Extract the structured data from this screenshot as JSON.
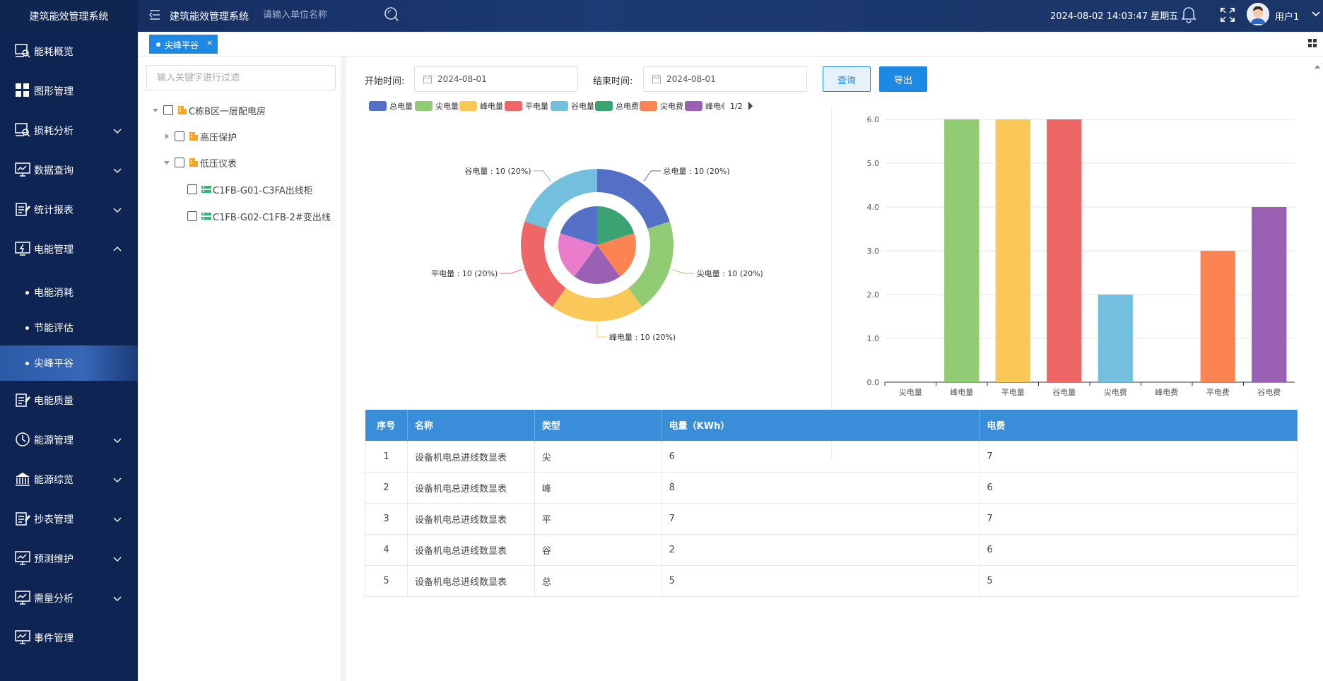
{
  "header": {
    "logo_title": "建筑能效管理系统",
    "system_title": "建筑能效管理系统",
    "search_placeholder": "请输入单位名称",
    "datetime": "2024-08-02 14:03:47 星期五",
    "user_name": "用户1"
  },
  "sidebar": {
    "items": [
      {
        "label": "能耗概览",
        "icon": "monitor-search-icon",
        "has_chevron": false
      },
      {
        "label": "图形管理",
        "icon": "grid-icon",
        "has_chevron": false
      },
      {
        "label": "损耗分析",
        "icon": "monitor-search-icon",
        "has_chevron": true
      },
      {
        "label": "数据查询",
        "icon": "chart-monitor-icon",
        "has_chevron": true
      },
      {
        "label": "统计报表",
        "icon": "report-edit-icon",
        "has_chevron": true
      },
      {
        "label": "电能管理",
        "icon": "power-monitor-icon",
        "has_chevron": true,
        "expanded": true
      }
    ],
    "subitems": [
      {
        "label": "电能消耗",
        "active": false
      },
      {
        "label": "节能评估",
        "active": false
      },
      {
        "label": "尖峰平谷",
        "active": true
      }
    ],
    "items_after": [
      {
        "label": "电能质量",
        "icon": "report-edit-icon",
        "has_chevron": false
      },
      {
        "label": "能源管理",
        "icon": "clock-icon",
        "has_chevron": true
      },
      {
        "label": "能源综览",
        "icon": "bank-icon",
        "has_chevron": true
      },
      {
        "label": "抄表管理",
        "icon": "report-edit-icon",
        "has_chevron": true
      },
      {
        "label": "预测维护",
        "icon": "chart-monitor-icon",
        "has_chevron": true
      },
      {
        "label": "需量分析",
        "icon": "chart-monitor-icon",
        "has_chevron": true
      },
      {
        "label": "事件管理",
        "icon": "chart-monitor-icon",
        "has_chevron": false
      }
    ]
  },
  "tabs": [
    {
      "label": "尖峰平谷",
      "close": "×"
    }
  ],
  "tree": {
    "filter_placeholder": "输入关键字进行过滤",
    "nodes": [
      {
        "label": "C栋B区一层配电房",
        "level": 0,
        "arrow": "down",
        "icon": "building-icon"
      },
      {
        "label": "高压保护",
        "level": 1,
        "arrow": "right",
        "icon": "building-icon"
      },
      {
        "label": "低压仪表",
        "level": 1,
        "arrow": "down",
        "icon": "building-icon"
      },
      {
        "label": "C1FB-G01-C3FA出线柜",
        "level": 2,
        "arrow": "none",
        "icon": "meter-icon"
      },
      {
        "label": "C1FB-G02-C1FB-2#变出线",
        "level": 2,
        "arrow": "none",
        "icon": "meter-icon"
      }
    ]
  },
  "filters": {
    "start_label": "开始时间:",
    "start_value": "2024-08-01",
    "end_label": "结束时间:",
    "end_value": "2024-08-01",
    "query_button": "查询",
    "export_button": "导出"
  },
  "legend": {
    "items": [
      {
        "name": "总电量",
        "color": "#5470c6"
      },
      {
        "name": "尖电量",
        "color": "#91cc75"
      },
      {
        "name": "峰电量",
        "color": "#fac858"
      },
      {
        "name": "平电量",
        "color": "#ee6666"
      },
      {
        "name": "谷电量",
        "color": "#73c0de"
      },
      {
        "name": "总电费",
        "color": "#3ba272"
      },
      {
        "name": "尖电费",
        "color": "#fc8452"
      },
      {
        "name": "峰电",
        "color": "#9a60b4"
      }
    ],
    "pager": "1/2"
  },
  "chart_data": [
    {
      "type": "pie",
      "rings": [
        {
          "ring": "outer",
          "slices": [
            {
              "name": "总电量",
              "value": 10,
              "percent": 20,
              "color": "#5470c6",
              "label": "总电量 : 10 (20%)"
            },
            {
              "name": "尖电量",
              "value": 10,
              "percent": 20,
              "color": "#91cc75",
              "label": "尖电量 : 10 (20%)"
            },
            {
              "name": "峰电量",
              "value": 10,
              "percent": 20,
              "color": "#fac858",
              "label": "峰电量 : 10 (20%)"
            },
            {
              "name": "平电量",
              "value": 10,
              "percent": 20,
              "color": "#ee6666",
              "label": "平电量 : 10 (20%)"
            },
            {
              "name": "谷电量",
              "value": 10,
              "percent": 20,
              "color": "#73c0de",
              "label": "谷电量 : 10 (20%)"
            }
          ]
        },
        {
          "ring": "inner",
          "slices": [
            {
              "name": "总电费",
              "value": 1,
              "color": "#3ba272"
            },
            {
              "name": "尖电费",
              "value": 1,
              "color": "#fc8452"
            },
            {
              "name": "峰电费",
              "value": 1,
              "color": "#9a60b4"
            },
            {
              "name": "平电费",
              "value": 1,
              "color": "#ea7ccc"
            },
            {
              "name": "谷电费",
              "value": 1,
              "color": "#5470c6"
            }
          ]
        }
      ]
    },
    {
      "type": "bar",
      "categories": [
        "尖电量",
        "峰电量",
        "平电量",
        "谷电量",
        "尖电费",
        "峰电费",
        "平电费",
        "谷电费"
      ],
      "values": [
        0,
        6,
        6,
        6,
        2,
        0,
        3,
        4
      ],
      "colors": [
        "#91cc75",
        "#91cc75",
        "#fac858",
        "#ee6666",
        "#73c0de",
        "#3ba272",
        "#fc8452",
        "#9a60b4"
      ],
      "ylim": [
        0,
        6
      ],
      "yticks": [
        "0.0",
        "1.0",
        "2.0",
        "3.0",
        "4.0",
        "5.0",
        "6.0"
      ],
      "grid": true
    }
  ],
  "table": {
    "headers": [
      "序号",
      "名称",
      "类型",
      "电量（KWh）",
      "电费"
    ],
    "rows": [
      [
        "1",
        "设备机电总进线数显表",
        "尖",
        "6",
        "7"
      ],
      [
        "2",
        "设备机电总进线数显表",
        "峰",
        "8",
        "6"
      ],
      [
        "3",
        "设备机电总进线数显表",
        "平",
        "7",
        "7"
      ],
      [
        "4",
        "设备机电总进线数显表",
        "谷",
        "2",
        "6"
      ],
      [
        "5",
        "设备机电总进线数显表",
        "总",
        "5",
        "5"
      ]
    ]
  }
}
